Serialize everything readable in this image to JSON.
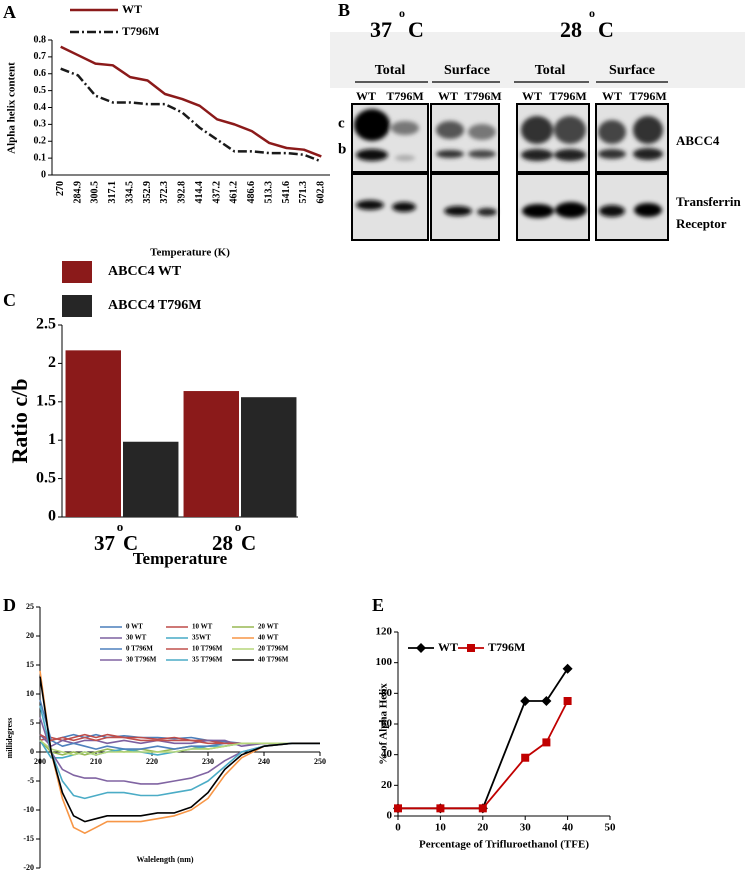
{
  "chart_data": [
    {
      "type": "line",
      "panel": "A",
      "xlabel": "Temperature (K)",
      "ylabel": "Alpha helix content",
      "categories": [
        "270",
        "284.9",
        "300.5",
        "317.1",
        "334.5",
        "352.9",
        "372.3",
        "392.8",
        "414.4",
        "437.2",
        "461.2",
        "486.6",
        "513.3",
        "541.6",
        "571.3",
        "602.8"
      ],
      "series": [
        {
          "name": "WT",
          "color": "#8b1a1a",
          "style": "solid",
          "values": [
            0.76,
            0.71,
            0.66,
            0.65,
            0.58,
            0.56,
            0.48,
            0.45,
            0.41,
            0.33,
            0.3,
            0.26,
            0.19,
            0.16,
            0.15,
            0.11
          ]
        },
        {
          "name": "T796M",
          "color": "#1a1a1a",
          "style": "dash-dot",
          "values": [
            0.63,
            0.59,
            0.47,
            0.43,
            0.43,
            0.42,
            0.42,
            0.37,
            0.28,
            0.21,
            0.14,
            0.14,
            0.13,
            0.13,
            0.12,
            0.08
          ]
        }
      ],
      "ylim": [
        0,
        0.8
      ],
      "yticks": [
        0,
        0.1,
        0.2,
        0.3,
        0.4,
        0.5,
        0.6,
        0.7,
        0.8
      ],
      "legend": "top"
    },
    {
      "type": "bar",
      "panel": "C",
      "xlabel": "Temperature",
      "ylabel": "Ratio c/b",
      "categories": [
        "37",
        "28"
      ],
      "category_degree": "o",
      "category_unit": "C",
      "series": [
        {
          "name": "ABCC4 WT",
          "color": "#8b1a1a",
          "values": [
            2.17,
            1.64
          ]
        },
        {
          "name": "ABCC4 T796M",
          "color": "#262626",
          "values": [
            0.98,
            1.56
          ]
        }
      ],
      "ylim": [
        0,
        2.5
      ],
      "yticks": [
        0,
        0.5,
        1,
        1.5,
        2,
        2.5
      ],
      "legend": "top-left"
    },
    {
      "type": "line",
      "panel": "D",
      "xlabel": "Walelength (nm)",
      "ylabel": "millidegress",
      "x": [
        200,
        202,
        204,
        206,
        208,
        210,
        212,
        215,
        218,
        221,
        224,
        227,
        230,
        233,
        236,
        240,
        245,
        250
      ],
      "series": [
        {
          "name": "0  WT",
          "color": "#4a7ebb",
          "values": [
            3,
            2,
            2.5,
            3,
            2.5,
            3,
            2.5,
            2.8,
            2.5,
            2.5,
            2.3,
            2.5,
            2,
            1.8,
            1.5,
            1.5,
            1.5,
            1.5
          ]
        },
        {
          "name": "10  WT",
          "color": "#be4b48",
          "values": [
            2,
            2.5,
            2,
            2.5,
            3,
            2.5,
            3,
            2.5,
            2.5,
            2.2,
            2.5,
            2,
            2,
            1.5,
            1.5,
            1.5,
            1.5,
            1.5
          ]
        },
        {
          "name": "20  WT",
          "color": "#98b954",
          "values": [
            2,
            0,
            -0.5,
            0,
            -0.5,
            0,
            0.5,
            0,
            0.5,
            0,
            0.5,
            1,
            0.5,
            1,
            1.5,
            1.5,
            1.5,
            1.5
          ]
        },
        {
          "name": "30  WT",
          "color": "#7d60a0",
          "values": [
            3,
            1,
            2,
            1.5,
            2,
            2,
            1.5,
            2,
            1.5,
            2,
            1.5,
            1.5,
            2,
            2,
            1,
            1.5,
            1.5,
            1.5
          ]
        },
        {
          "name": "35WT",
          "color": "#46aac5",
          "values": [
            2,
            -1,
            -1,
            -0.5,
            0,
            -0.5,
            0,
            0.5,
            0,
            -0.5,
            0,
            0.5,
            1,
            1,
            1.5,
            1.5,
            1.5,
            1.5
          ]
        },
        {
          "name": "40 WT",
          "color": "#f79646",
          "values": [
            14,
            0,
            -8,
            -13,
            -14,
            -13,
            -12,
            -12,
            -12,
            -11.5,
            -11,
            -10,
            -8,
            -4,
            -1,
            1,
            1.5,
            1.5
          ]
        },
        {
          "name": "0  T796M",
          "color": "#4f81bd",
          "values": [
            9,
            2,
            1,
            1.5,
            1,
            0.5,
            1,
            0.5,
            0.5,
            1,
            0.5,
            1,
            1,
            1.5,
            1.5,
            1.5,
            1.5,
            1.5
          ]
        },
        {
          "name": "10  T796M",
          "color": "#c0504d",
          "values": [
            3,
            2,
            2.5,
            2,
            2.5,
            2,
            2.5,
            2.5,
            2,
            2,
            2,
            2,
            1.5,
            1.5,
            1.5,
            1.5,
            1.5,
            1.5
          ]
        },
        {
          "name": "20 T796M",
          "color": "#b5d67a",
          "values": [
            2,
            0.5,
            0,
            -0.5,
            0,
            -0.5,
            0,
            0,
            0,
            0,
            0,
            0.5,
            0.5,
            1,
            1.5,
            1.5,
            1.5,
            1.5
          ]
        },
        {
          "name": "30  T796M",
          "color": "#8064a2",
          "values": [
            6,
            0,
            -3,
            -4,
            -4.5,
            -4.5,
            -5,
            -5,
            -5.5,
            -5.5,
            -5,
            -4.5,
            -3.5,
            -1.5,
            0,
            1,
            1.5,
            1.5
          ]
        },
        {
          "name": "35  T796M",
          "color": "#4bacc6",
          "values": [
            8,
            0,
            -5,
            -7.5,
            -8,
            -7.5,
            -7,
            -7,
            -7.5,
            -7.5,
            -7,
            -6.5,
            -5,
            -2.5,
            0,
            1,
            1.5,
            1.5
          ]
        },
        {
          "name": "40  T796M",
          "color": "#000000",
          "values": [
            13,
            0,
            -7,
            -11,
            -12,
            -11.5,
            -11,
            -11,
            -11,
            -10.5,
            -10.5,
            -9.5,
            -7,
            -3,
            -0.5,
            1,
            1.5,
            1.5
          ]
        }
      ],
      "xlim": [
        200,
        250
      ],
      "xticks": [
        200,
        210,
        220,
        230,
        240,
        250
      ],
      "ylim": [
        -20,
        25
      ],
      "yticks": [
        -20,
        -15,
        -10,
        -5,
        0,
        5,
        10,
        15,
        20,
        25
      ],
      "legend": "top"
    },
    {
      "type": "line",
      "panel": "E",
      "xlabel": "Percentage of Trifluroethanol (TFE)",
      "ylabel": "% of Alpha Helix",
      "x": [
        0,
        10,
        20,
        30,
        35,
        40
      ],
      "series": [
        {
          "name": "WT",
          "color": "#000000",
          "marker": "diamond",
          "values": [
            5,
            5,
            5,
            75,
            75,
            96
          ]
        },
        {
          "name": "T796M",
          "color": "#c00000",
          "marker": "square",
          "values": [
            5,
            5,
            5,
            38,
            48,
            75
          ]
        }
      ],
      "xlim": [
        0,
        50
      ],
      "xticks": [
        0,
        10,
        20,
        30,
        40,
        50
      ],
      "ylim": [
        0,
        120
      ],
      "yticks": [
        0,
        20,
        40,
        60,
        80,
        100,
        120
      ],
      "legend": "top-left"
    }
  ],
  "blot": {
    "label": "B",
    "temperatures": [
      {
        "value": "37",
        "degree": "o",
        "unit": "C"
      },
      {
        "value": "28",
        "degree": "o",
        "unit": "C"
      }
    ],
    "fractions": [
      "Total",
      "Surface",
      "Total",
      "Surface"
    ],
    "lanes": [
      "WT",
      "T796M",
      "WT",
      "T796M",
      "WT",
      "T796M",
      "WT",
      "T796M"
    ],
    "bands": [
      "c",
      "b"
    ],
    "proteins": [
      "ABCC4",
      "Transferrin",
      "Receptor"
    ]
  }
}
